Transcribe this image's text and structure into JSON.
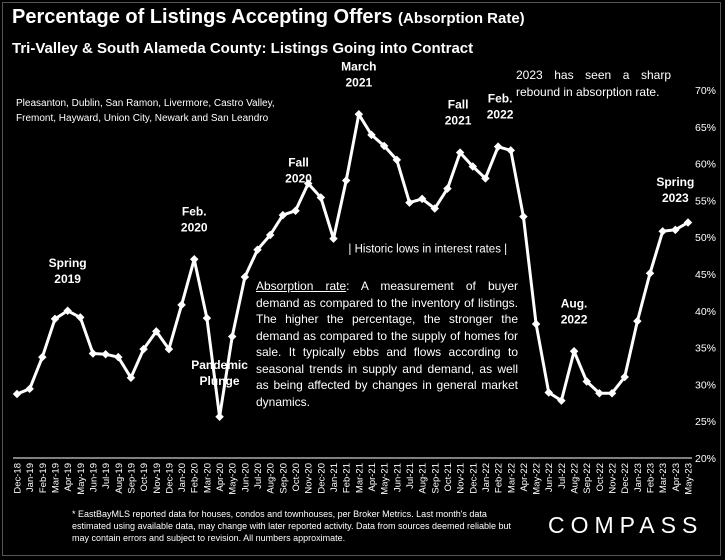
{
  "header": {
    "title": "Percentage of Listings Accepting Offers",
    "title_suffix": "(Absorption Rate)",
    "subtitle": "Tri-Valley & South Alameda County: Listings Going into Contract"
  },
  "notes": {
    "areas": "Pleasanton, Dublin, San Ramon, Livermore, Castro Valley, Fremont, Hayward, Union City, Newark and San Leandro",
    "rebound": "2023 has seen a sharp rebound in absorption rate.",
    "definition_term": "Absorption rate",
    "definition_body": ": A measurement of buyer demand as compared to the inventory of listings. The higher the percentage, the stronger the demand as compared to the supply of homes for sale. It typically ebbs and flows according to seasonal trends in supply and demand, as well as being affected by changes in general market dynamics.",
    "footnote": "* EastBayMLS reported data for houses, condos and townhouses, per Broker Metrics. Last month's data estimated using available data, may change with later reported activity. Data from sources deemed reliable but may contain errors and subject to revision. All numbers approximate.",
    "brand": "COMPASS"
  },
  "chart_data": {
    "type": "line",
    "categories": [
      "Dec-18",
      "Jan-19",
      "Feb-19",
      "Mar-19",
      "Apr-19",
      "May-19",
      "Jun-19",
      "Jul-19",
      "Aug-19",
      "Sep-19",
      "Oct-19",
      "Nov-19",
      "Dec-19",
      "Jan-20",
      "Feb-20",
      "Mar-20",
      "Apr-20",
      "May-20",
      "Jun-20",
      "Jul-20",
      "Aug-20",
      "Sep-20",
      "Oct-20",
      "Nov-20",
      "Dec-20",
      "Jan-21",
      "Feb-21",
      "Mar-21",
      "Apr-21",
      "May-21",
      "Jun-21",
      "Jul-21",
      "Aug-21",
      "Sep-21",
      "Oct-21",
      "Nov-21",
      "Dec-21",
      "Jan-22",
      "Feb-22",
      "Mar-22",
      "Apr-22",
      "May-22",
      "Jun-22",
      "Jul-22",
      "Aug-22",
      "Sep-22",
      "Oct-22",
      "Nov-22",
      "Dec-22",
      "Jan-23",
      "Feb-23",
      "Mar-23",
      "Apr-23",
      "May-23"
    ],
    "values": [
      28.7,
      29.4,
      33.7,
      38.9,
      40.0,
      39.1,
      34.2,
      34.1,
      33.7,
      30.9,
      34.8,
      37.2,
      34.8,
      40.8,
      47.0,
      39.0,
      25.6,
      36.5,
      44.6,
      48.3,
      50.3,
      53.0,
      53.6,
      57.3,
      55.4,
      49.8,
      57.7,
      66.7,
      63.9,
      62.4,
      60.5,
      54.7,
      55.2,
      53.9,
      56.6,
      61.5,
      59.6,
      58.0,
      62.3,
      61.8,
      52.8,
      38.2,
      28.9,
      27.8,
      34.5,
      30.4,
      28.8,
      28.8,
      31.0,
      38.6,
      45.1,
      50.8,
      51.0,
      52.0
    ],
    "ylim": [
      20,
      70
    ],
    "yticks": [
      "20%",
      "25%",
      "30%",
      "35%",
      "40%",
      "45%",
      "50%",
      "55%",
      "60%",
      "65%",
      "70%"
    ],
    "grid": false,
    "series_color": "#ffffff",
    "annotations": [
      {
        "lines": [
          "Spring",
          "2019"
        ],
        "at": "Apr-19"
      },
      {
        "lines": [
          "Feb.",
          "2020"
        ],
        "at": "Feb-20"
      },
      {
        "lines": [
          "Pandemic",
          "Plunge"
        ],
        "at": "Apr-20"
      },
      {
        "lines": [
          "Fall",
          "2020"
        ],
        "at": "Oct-20"
      },
      {
        "lines": [
          "March",
          "2021"
        ],
        "at": "Mar-21"
      },
      {
        "lines": [
          "Fall",
          "2021"
        ],
        "at": "Nov-21"
      },
      {
        "lines": [
          "Feb.",
          "2022"
        ],
        "at": "Feb-22"
      },
      {
        "lines": [
          "Aug.",
          "2022"
        ],
        "at": "Aug-22"
      },
      {
        "lines": [
          "Spring",
          "2023"
        ],
        "at": "Apr-23"
      },
      {
        "lines": [
          "| Historic lows in interest rates |"
        ],
        "at": "Sep-21"
      }
    ]
  }
}
